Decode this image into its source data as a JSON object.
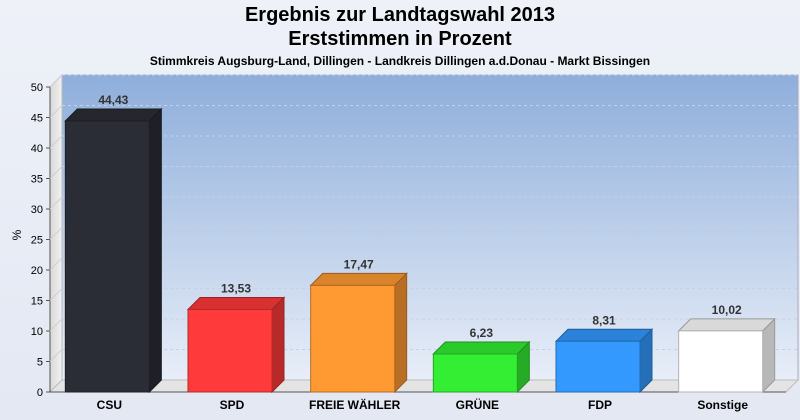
{
  "chart_data": {
    "type": "bar",
    "title": "Ergebnis zur Landtagswahl 2013",
    "subtitle_line": "Erststimmen in Prozent",
    "subtitle": "Stimmkreis Augsburg-Land, Dillingen - Landkreis Dillingen a.d.Donau - Markt Bissingen",
    "ylabel": "%",
    "xlabel": "",
    "ylim": [
      0,
      50
    ],
    "yticks": [
      0,
      5,
      10,
      15,
      20,
      25,
      30,
      35,
      40,
      45,
      50
    ],
    "grid": true,
    "categories": [
      "CSU",
      "SPD",
      "FREIE WÄHLER",
      "GRÜNE",
      "FDP",
      "Sonstige"
    ],
    "values": [
      44.43,
      13.53,
      17.47,
      6.23,
      8.31,
      10.02
    ],
    "value_labels": [
      "44,43",
      "13,53",
      "17,47",
      "6,23",
      "8,31",
      "10,02"
    ],
    "colors": [
      "#2b2d36",
      "#ff3a3a",
      "#ff9a33",
      "#33ee33",
      "#3399ff",
      "#ffffff"
    ]
  }
}
